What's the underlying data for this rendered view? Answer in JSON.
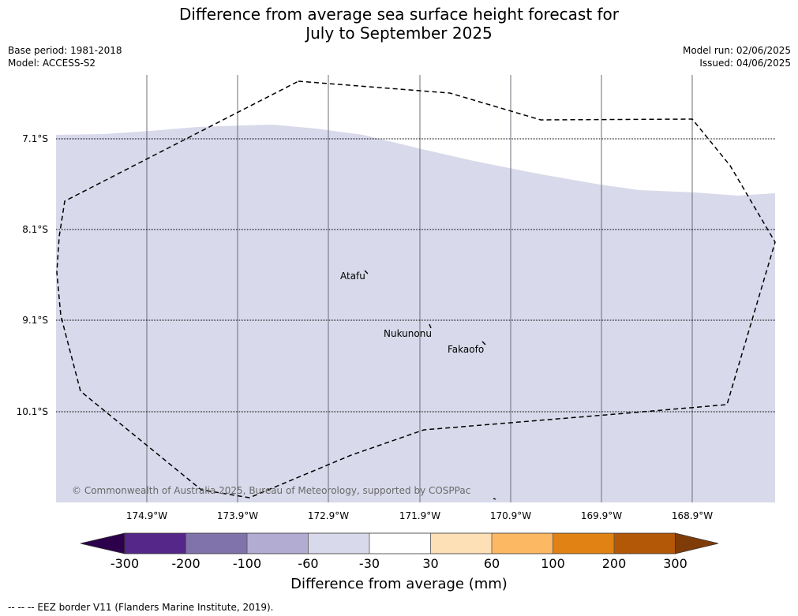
{
  "title": {
    "line1": "Difference from average sea surface height forecast for",
    "line2": "July to September 2025"
  },
  "meta": {
    "base_period": "Base period: 1981-2018",
    "model": "Model: ACCESS-S2",
    "model_run": "Model run: 02/06/2025",
    "issued": "Issued: 04/06/2025"
  },
  "map": {
    "lat_labels": [
      "7.1°S",
      "8.1°S",
      "9.1°S",
      "10.1°S"
    ],
    "lon_labels": [
      "174.9°W",
      "173.9°W",
      "172.9°W",
      "171.9°W",
      "170.9°W",
      "169.9°W",
      "168.9°W"
    ],
    "places": [
      {
        "name": "Atafu"
      },
      {
        "name": "Nukunonu"
      },
      {
        "name": "Fakaofo"
      }
    ],
    "copyright": "© Commonwealth of Australia 2025, Bureau of Meteorology, supported by COSPPac",
    "fill_color": "#d8d9ea",
    "gridline_color": "#000000",
    "eez_color": "#000000"
  },
  "colorbar": {
    "title": "Difference from average (mm)",
    "ticks": [
      "-300",
      "-200",
      "-100",
      "-60",
      "-30",
      "30",
      "60",
      "100",
      "200",
      "300"
    ],
    "colors": {
      "under": "#2d004b",
      "bins": [
        "#542788",
        "#8073ac",
        "#b2abd2",
        "#d8daeb",
        "#ffffff",
        "#fee0b6",
        "#fdb863",
        "#e08214",
        "#b35806"
      ],
      "over": "#7f3b08"
    }
  },
  "footnote": "--  --  -- EEZ border V11 (Flanders Marine Institute, 2019)."
}
